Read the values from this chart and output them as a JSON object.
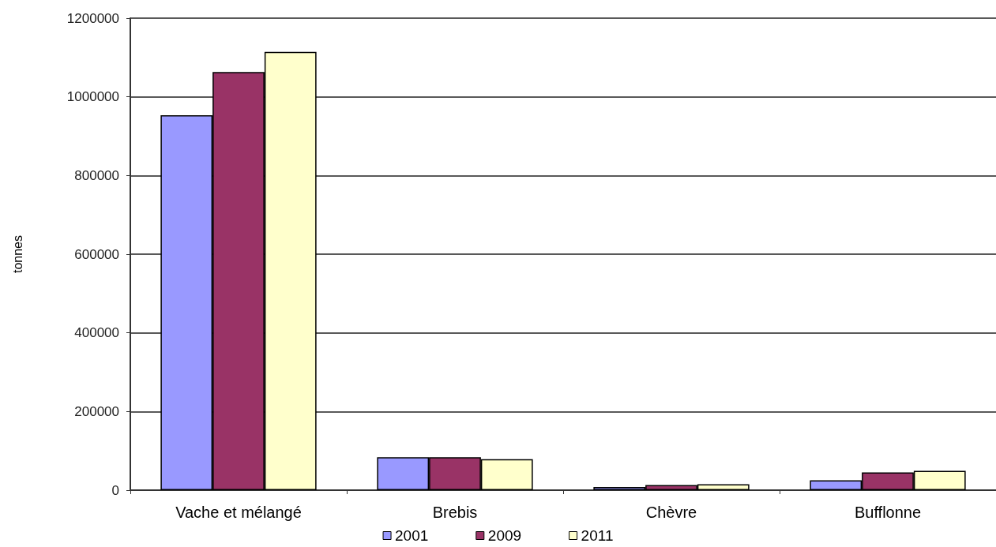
{
  "chart_data": {
    "type": "bar",
    "ylabel": "tonnes",
    "categories": [
      "Vache et mélangé",
      "Brebis",
      "Chèvre",
      "Bufflonne"
    ],
    "series": [
      {
        "name": "2001",
        "color": "#9999ff",
        "values": [
          953000,
          84000,
          8000,
          25000
        ]
      },
      {
        "name": "2009",
        "color": "#993366",
        "values": [
          1063000,
          84000,
          13000,
          45000
        ]
      },
      {
        "name": "2011",
        "color": "#ffffcc",
        "values": [
          1114000,
          79000,
          15000,
          49000
        ]
      }
    ],
    "ylim": [
      0,
      1200000
    ],
    "yticks": [
      0,
      200000,
      400000,
      600000,
      800000,
      1000000,
      1200000
    ],
    "grid": "y",
    "legend": "bottom"
  }
}
